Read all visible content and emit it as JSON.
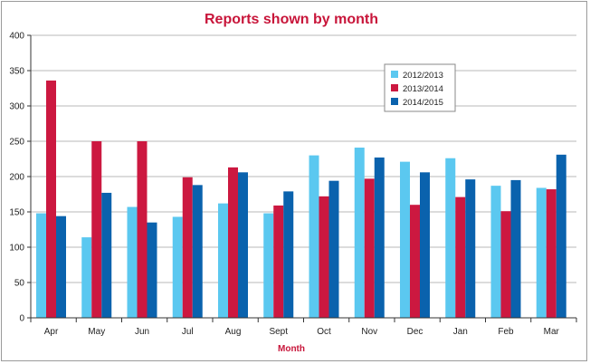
{
  "chart_data": {
    "type": "bar",
    "title": "Reports shown by month",
    "xlabel": "Month",
    "ylabel": "",
    "ylim": [
      0,
      400
    ],
    "yticks": [
      0,
      50,
      100,
      150,
      200,
      250,
      300,
      350,
      400
    ],
    "grid": true,
    "legend_position": "top-right",
    "categories": [
      "Apr",
      "May",
      "Jun",
      "Jul",
      "Aug",
      "Sept",
      "Oct",
      "Nov",
      "Dec",
      "Jan",
      "Feb",
      "Mar"
    ],
    "series": [
      {
        "name": "2012/2013",
        "color": "#5bc8f0",
        "values": [
          148,
          114,
          157,
          143,
          162,
          148,
          230,
          241,
          221,
          226,
          187,
          184
        ]
      },
      {
        "name": "2013/2014",
        "color": "#cc1840",
        "values": [
          336,
          250,
          250,
          199,
          213,
          159,
          172,
          197,
          160,
          171,
          151,
          182
        ]
      },
      {
        "name": "2014/2015",
        "color": "#0a62ad",
        "values": [
          144,
          177,
          135,
          188,
          206,
          179,
          194,
          227,
          206,
          196,
          195,
          231
        ]
      }
    ],
    "colors": {
      "title": "#c8153a",
      "xlabel": "#c8153a",
      "grid": "#a0a0a0",
      "axis": "#333333"
    }
  }
}
